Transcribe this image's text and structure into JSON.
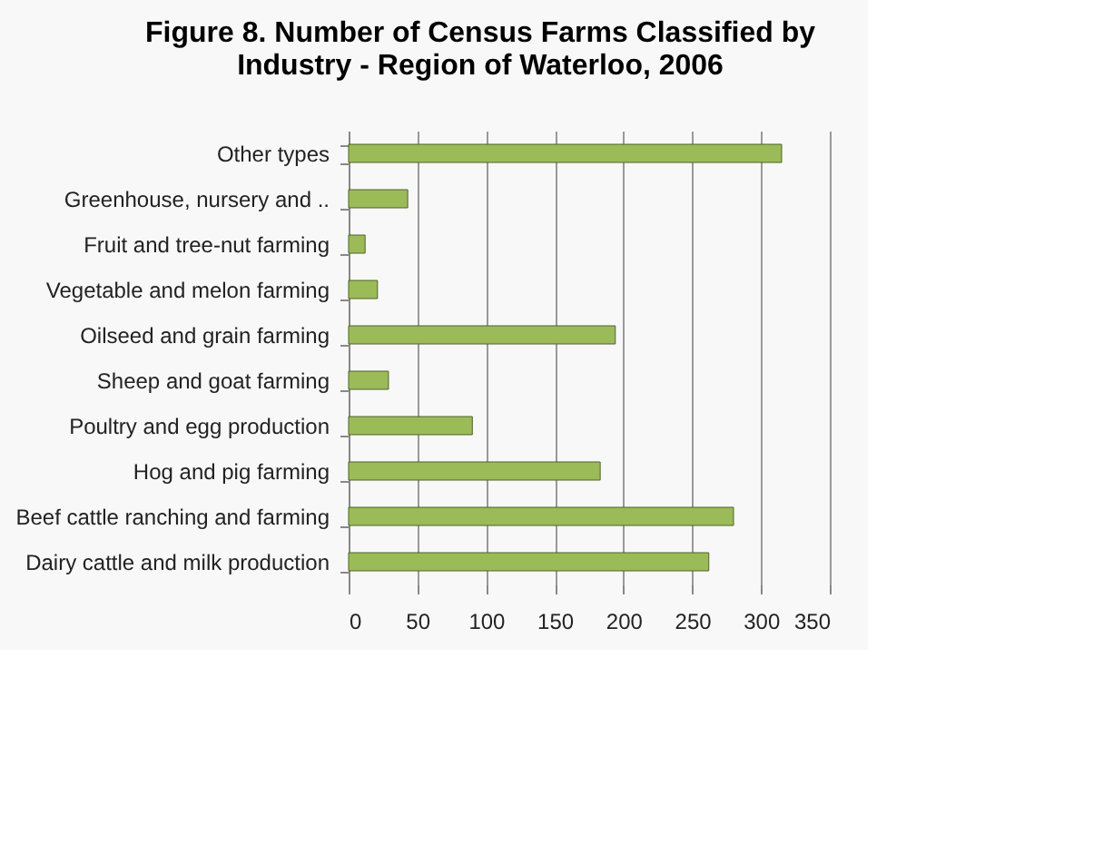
{
  "chart_data": {
    "type": "bar",
    "orientation": "horizontal",
    "title": [
      "Figure 8. Number of Census Farms Classified by",
      "Industry - Region of Waterloo, 2006"
    ],
    "categories": [
      "Other types",
      "Greenhouse, nursery and ..",
      "Fruit and tree-nut farming",
      "Vegetable and melon farming",
      "Oilseed and grain farming",
      "Sheep and goat farming",
      "Poultry and egg production",
      "Hog and pig farming",
      "Beef cattle ranching and farming",
      "Dairy cattle  and milk production"
    ],
    "values": [
      315,
      43,
      12,
      21,
      194,
      29,
      90,
      183,
      280,
      262
    ],
    "color": "#9bbb59",
    "xlim": [
      0,
      350
    ],
    "xticks": [
      0,
      50,
      100,
      150,
      200,
      250,
      300,
      350
    ],
    "grid": "x"
  }
}
